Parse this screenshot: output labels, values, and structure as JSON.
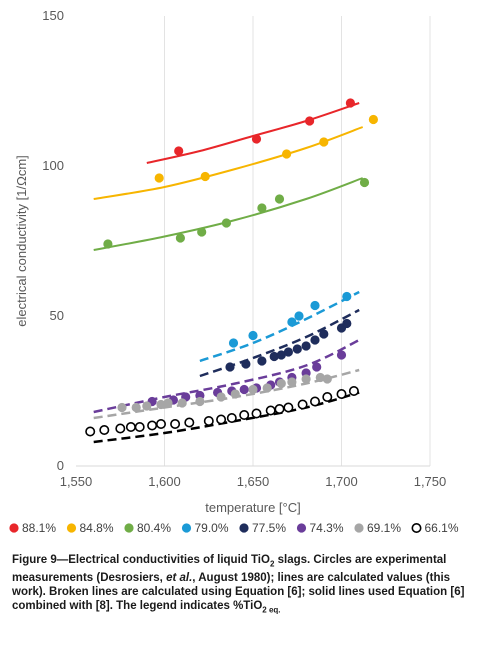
{
  "chart_data": {
    "type": "scatter",
    "title": "",
    "xlabel": "temperature [°C]",
    "ylabel": "electrical conductivity [1/Ωcm]",
    "xlim": [
      1550,
      1750
    ],
    "ylim": [
      0,
      150
    ],
    "x_ticks": [
      1550,
      1600,
      1650,
      1700,
      1750
    ],
    "y_ticks": [
      0,
      50,
      100,
      150
    ],
    "x_tick_labels": [
      "1,550",
      "1,600",
      "1,650",
      "1,700",
      "1,750"
    ],
    "y_tick_labels": [
      "0",
      "50",
      "100",
      "150"
    ],
    "grid": "vertical",
    "legend_position": "bottom",
    "series": [
      {
        "name": "88.1%",
        "color": "#e8262a",
        "marker": "filled",
        "points": [
          [
            1608,
            105
          ],
          [
            1652,
            109
          ],
          [
            1682,
            115
          ],
          [
            1705,
            121
          ]
        ],
        "solid_line": [
          [
            1590,
            101
          ],
          [
            1620,
            105
          ],
          [
            1650,
            110
          ],
          [
            1680,
            115
          ],
          [
            1710,
            121
          ]
        ]
      },
      {
        "name": "84.8%",
        "color": "#f7b500",
        "marker": "filled",
        "points": [
          [
            1597,
            96
          ],
          [
            1623,
            96.5
          ],
          [
            1669,
            104
          ],
          [
            1690,
            108
          ],
          [
            1718,
            115.5
          ]
        ],
        "solid_line": [
          [
            1560,
            89
          ],
          [
            1600,
            93
          ],
          [
            1640,
            99
          ],
          [
            1680,
            106
          ],
          [
            1712,
            113
          ]
        ]
      },
      {
        "name": "80.4%",
        "color": "#70ad47",
        "marker": "filled",
        "points": [
          [
            1568,
            74
          ],
          [
            1609,
            76
          ],
          [
            1621,
            78
          ],
          [
            1635,
            81
          ],
          [
            1655,
            86
          ],
          [
            1665,
            89
          ],
          [
            1713,
            94.5
          ]
        ],
        "solid_line": [
          [
            1560,
            72
          ],
          [
            1600,
            76.5
          ],
          [
            1640,
            82
          ],
          [
            1680,
            89
          ],
          [
            1712,
            96
          ]
        ]
      },
      {
        "name": "79.0%",
        "color": "#1b9ad6",
        "marker": "filled",
        "points": [
          [
            1639,
            41
          ],
          [
            1650,
            43.5
          ],
          [
            1672,
            48
          ],
          [
            1676,
            50
          ],
          [
            1685,
            53.5
          ],
          [
            1703,
            56.5
          ]
        ],
        "dashed_line": [
          [
            1620,
            35
          ],
          [
            1650,
            41
          ],
          [
            1680,
            49
          ],
          [
            1710,
            58
          ]
        ]
      },
      {
        "name": "77.5%",
        "color": "#1f2d5c",
        "marker": "filled",
        "points": [
          [
            1637,
            33
          ],
          [
            1646,
            34
          ],
          [
            1655,
            35
          ],
          [
            1662,
            36.5
          ],
          [
            1666,
            37
          ],
          [
            1670,
            38
          ],
          [
            1675,
            39
          ],
          [
            1680,
            40
          ],
          [
            1685,
            42
          ],
          [
            1690,
            44
          ],
          [
            1700,
            46
          ],
          [
            1703,
            47.5
          ]
        ],
        "dashed_line": [
          [
            1620,
            30
          ],
          [
            1650,
            36
          ],
          [
            1680,
            43
          ],
          [
            1710,
            52
          ]
        ]
      },
      {
        "name": "74.3%",
        "color": "#6a3d9a",
        "marker": "filled",
        "points": [
          [
            1593,
            21.5
          ],
          [
            1605,
            22
          ],
          [
            1612,
            23
          ],
          [
            1620,
            23.5
          ],
          [
            1630,
            24.5
          ],
          [
            1638,
            25
          ],
          [
            1645,
            25.5
          ],
          [
            1652,
            26
          ],
          [
            1660,
            27
          ],
          [
            1665,
            28
          ],
          [
            1672,
            29.5
          ],
          [
            1680,
            31
          ],
          [
            1686,
            33
          ],
          [
            1700,
            37
          ]
        ],
        "dashed_line": [
          [
            1560,
            18
          ],
          [
            1600,
            23
          ],
          [
            1640,
            27.5
          ],
          [
            1680,
            33.5
          ],
          [
            1710,
            42
          ]
        ]
      },
      {
        "name": "69.1%",
        "color": "#a6a6a6",
        "marker": "filled",
        "points": [
          [
            1576,
            19.5
          ],
          [
            1584,
            19.5
          ],
          [
            1590,
            20
          ],
          [
            1598,
            20.5
          ],
          [
            1602,
            21
          ],
          [
            1610,
            21
          ],
          [
            1620,
            21.5
          ],
          [
            1632,
            23
          ],
          [
            1640,
            24
          ],
          [
            1650,
            25.5
          ],
          [
            1658,
            26
          ],
          [
            1666,
            27.5
          ],
          [
            1672,
            28
          ],
          [
            1680,
            29
          ],
          [
            1688,
            29.5
          ],
          [
            1692,
            29
          ]
        ],
        "dashed_line": [
          [
            1560,
            16
          ],
          [
            1600,
            19.5
          ],
          [
            1640,
            23
          ],
          [
            1680,
            27.5
          ],
          [
            1710,
            32
          ]
        ]
      },
      {
        "name": "66.1%",
        "color": "#000000",
        "marker": "open",
        "points": [
          [
            1558,
            11.5
          ],
          [
            1566,
            12
          ],
          [
            1575,
            12.5
          ],
          [
            1581,
            13
          ],
          [
            1586,
            13
          ],
          [
            1593,
            13.5
          ],
          [
            1598,
            14
          ],
          [
            1606,
            14
          ],
          [
            1614,
            14.5
          ],
          [
            1625,
            15
          ],
          [
            1632,
            15.5
          ],
          [
            1638,
            16
          ],
          [
            1645,
            17
          ],
          [
            1652,
            17.5
          ],
          [
            1660,
            18.5
          ],
          [
            1665,
            19
          ],
          [
            1670,
            19.5
          ],
          [
            1678,
            20.5
          ],
          [
            1685,
            21.5
          ],
          [
            1692,
            23
          ],
          [
            1700,
            24
          ],
          [
            1707,
            25
          ]
        ],
        "dashed_line": [
          [
            1560,
            8
          ],
          [
            1600,
            11
          ],
          [
            1640,
            15
          ],
          [
            1680,
            19.5
          ],
          [
            1710,
            24.5
          ]
        ]
      }
    ]
  },
  "caption": {
    "prefix": "Figure 9—Electrical conductivities of liquid TiO",
    "sub1": "2",
    "middle": " slags. Circles are experimental measurements (Desrosiers, ",
    "etal": "et al.",
    "rest": ", August 1980); lines are calculated values (this work). Broken lines are calculated using Equation [6]; solid lines used Equation [6] combined with [8]. The legend indicates %TiO",
    "sub2": "2 eq."
  }
}
